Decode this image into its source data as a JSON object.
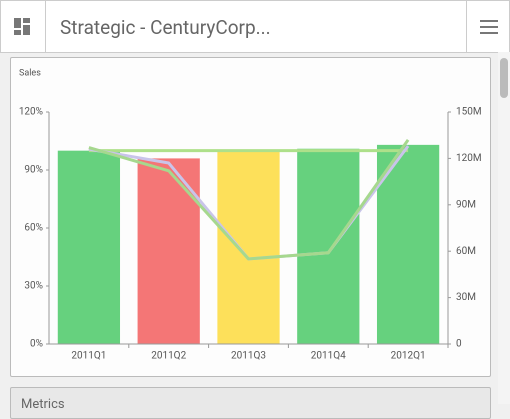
{
  "header": {
    "title": "Strategic - CenturyCorp..."
  },
  "chart_data": {
    "type": "bar",
    "title": "Sales",
    "categories": [
      "2011Q1",
      "2011Q2",
      "2011Q3",
      "2011Q4",
      "2012Q1"
    ],
    "values": [
      100,
      96,
      100,
      101,
      103
    ],
    "colors": [
      "#66d17e",
      "#f47676",
      "#fde05a",
      "#66d17e",
      "#66d17e"
    ],
    "ylim": [
      0,
      120
    ],
    "yticks": [
      {
        "value": 0,
        "label": "0%"
      },
      {
        "value": 30,
        "label": "30%"
      },
      {
        "value": 60,
        "label": "60%"
      },
      {
        "value": 90,
        "label": "90%"
      },
      {
        "value": 120,
        "label": "120%"
      }
    ],
    "y2lim": [
      0,
      150000000
    ],
    "y2ticks": [
      0,
      {
        "value": 30000000,
        "label": "30M"
      },
      {
        "value": 60000000,
        "label": "60M"
      },
      {
        "value": 90000000,
        "label": "90M"
      },
      {
        "value": 120000000,
        "label": "120M"
      },
      {
        "value": 150000000,
        "label": "150M"
      }
    ],
    "series": [
      {
        "color": "#aee08a",
        "axis": "y2",
        "values": [
          125000000,
          125000000,
          125000000,
          125000000,
          125000000
        ]
      },
      {
        "color": "#c9c4ea",
        "axis": "y2",
        "values": [
          126000000,
          117000000,
          55000000,
          59000000,
          128000000
        ]
      },
      {
        "color": "#a6d88e",
        "axis": "y2",
        "values": [
          127000000,
          112000000,
          55000000,
          59000000,
          132000000
        ]
      }
    ]
  },
  "next_panel": {
    "title": "Metrics"
  }
}
